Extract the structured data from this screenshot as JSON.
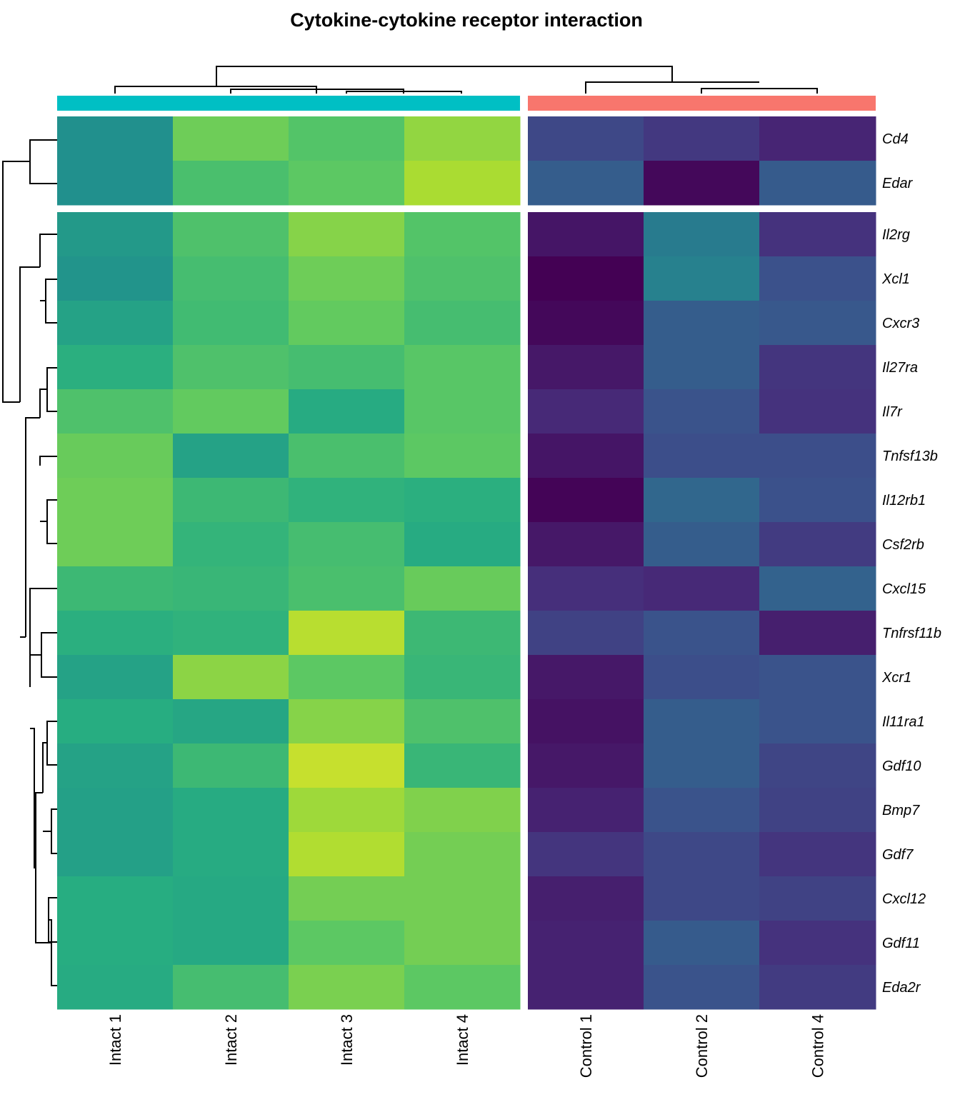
{
  "chart_data": {
    "type": "heatmap",
    "title": "Cytokine-cytokine receptor interaction",
    "columns": [
      "Intact 1",
      "Intact 2",
      "Intact 3",
      "Intact 4",
      "Control 1",
      "Control 2",
      "Control 4"
    ],
    "column_groups": [
      {
        "columns": [
          "Intact 1",
          "Intact 2",
          "Intact 3",
          "Intact 4"
        ],
        "color": "#00BFC4"
      },
      {
        "columns": [
          "Control 1",
          "Control 2",
          "Control 4"
        ],
        "color": "#F8766D"
      }
    ],
    "rows": [
      "Cd4",
      "Edar",
      "Il2rg",
      "Xcl1",
      "Cxcr3",
      "Il27ra",
      "Il7r",
      "Tnfsf13b",
      "Il12rb1",
      "Csf2rb",
      "Cxcl15",
      "Tnfrsf11b",
      "Xcr1",
      "Il11ra1",
      "Gdf10",
      "Bmp7",
      "Gdf7",
      "Cxcl12",
      "Gdf11",
      "Eda2r"
    ],
    "row_split": [
      2,
      18
    ],
    "colorscale": "viridis",
    "values": [
      [
        0.5,
        0.78,
        0.73,
        0.84,
        0.22,
        0.17,
        0.11
      ],
      [
        0.5,
        0.71,
        0.75,
        0.88,
        0.3,
        0.02,
        0.29
      ],
      [
        0.54,
        0.72,
        0.82,
        0.73,
        0.06,
        0.42,
        0.15
      ],
      [
        0.52,
        0.7,
        0.78,
        0.72,
        0.0,
        0.44,
        0.25
      ],
      [
        0.58,
        0.69,
        0.76,
        0.7,
        0.02,
        0.3,
        0.28
      ],
      [
        0.64,
        0.72,
        0.7,
        0.74,
        0.07,
        0.3,
        0.16
      ],
      [
        0.72,
        0.76,
        0.62,
        0.74,
        0.12,
        0.26,
        0.15
      ],
      [
        0.77,
        0.58,
        0.71,
        0.75,
        0.06,
        0.24,
        0.24
      ],
      [
        0.78,
        0.68,
        0.65,
        0.64,
        0.01,
        0.34,
        0.25
      ],
      [
        0.78,
        0.66,
        0.7,
        0.62,
        0.07,
        0.3,
        0.18
      ],
      [
        0.68,
        0.67,
        0.71,
        0.77,
        0.14,
        0.12,
        0.32
      ],
      [
        0.64,
        0.65,
        0.9,
        0.68,
        0.2,
        0.26,
        0.09
      ],
      [
        0.58,
        0.83,
        0.75,
        0.67,
        0.07,
        0.24,
        0.26
      ],
      [
        0.63,
        0.6,
        0.82,
        0.72,
        0.05,
        0.3,
        0.26
      ],
      [
        0.58,
        0.68,
        0.92,
        0.67,
        0.07,
        0.3,
        0.21
      ],
      [
        0.57,
        0.62,
        0.86,
        0.81,
        0.1,
        0.26,
        0.2
      ],
      [
        0.57,
        0.62,
        0.89,
        0.79,
        0.16,
        0.22,
        0.16
      ],
      [
        0.63,
        0.61,
        0.79,
        0.79,
        0.09,
        0.22,
        0.2
      ],
      [
        0.63,
        0.61,
        0.75,
        0.79,
        0.1,
        0.29,
        0.15
      ],
      [
        0.62,
        0.7,
        0.8,
        0.75,
        0.1,
        0.26,
        0.18
      ]
    ]
  }
}
